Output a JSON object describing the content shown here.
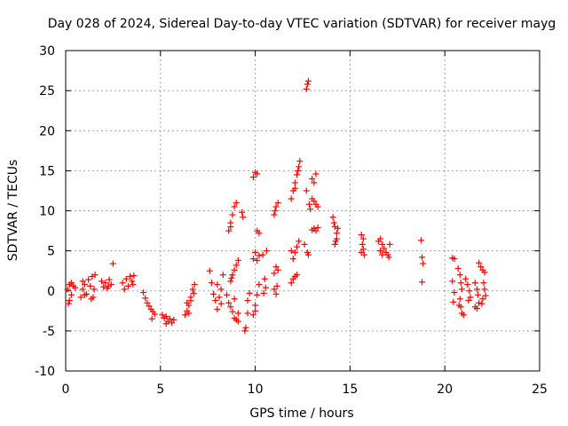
{
  "chart_data": {
    "type": "scatter",
    "title": "Day 028 of 2024, Sidereal Day-to-day VTEC variation (SDTVAR) for receiver mayg",
    "xlabel": "GPS time / hours",
    "ylabel": "SDTVAR / TECUs",
    "xlim": [
      0,
      25
    ],
    "ylim": [
      -10,
      30
    ],
    "xticks": [
      0,
      5,
      10,
      15,
      20,
      25
    ],
    "yticks": [
      -10,
      -5,
      0,
      5,
      10,
      15,
      20,
      25,
      30
    ],
    "grid": true,
    "marker": "+",
    "series": [
      {
        "name": "SDTVAR",
        "color": "#ff0000",
        "points": [
          [
            0.1,
            0.2
          ],
          [
            0.2,
            0.8
          ],
          [
            0.3,
            -0.5
          ],
          [
            0.4,
            0.6
          ],
          [
            0.3,
            1.0
          ],
          [
            0.2,
            -1.2
          ],
          [
            0.15,
            -1.6
          ],
          [
            0.5,
            0.4
          ],
          [
            0.8,
            -0.8
          ],
          [
            0.9,
            0.2
          ],
          [
            1.0,
            0.8
          ],
          [
            1.1,
            -0.4
          ],
          [
            1.2,
            1.4
          ],
          [
            1.3,
            0.6
          ],
          [
            1.35,
            -1.0
          ],
          [
            1.4,
            1.8
          ],
          [
            1.5,
            0.2
          ],
          [
            1.55,
            2.0
          ],
          [
            1.45,
            -0.8
          ],
          [
            1.0,
            -0.5
          ],
          [
            0.9,
            1.2
          ],
          [
            1.9,
            1.2
          ],
          [
            2.0,
            0.5
          ],
          [
            2.1,
            1.0
          ],
          [
            2.2,
            0.3
          ],
          [
            2.3,
            1.4
          ],
          [
            2.4,
            0.8
          ],
          [
            2.5,
            3.4
          ],
          [
            2.25,
            0.6
          ],
          [
            3.0,
            1.0
          ],
          [
            3.1,
            0.2
          ],
          [
            3.2,
            1.5
          ],
          [
            3.3,
            0.6
          ],
          [
            3.4,
            1.8
          ],
          [
            3.5,
            1.2
          ],
          [
            3.6,
            1.9
          ],
          [
            3.55,
            0.8
          ],
          [
            4.1,
            -0.2
          ],
          [
            4.2,
            -0.9
          ],
          [
            4.3,
            -1.5
          ],
          [
            4.4,
            -1.9
          ],
          [
            4.5,
            -2.3
          ],
          [
            4.6,
            -2.6
          ],
          [
            4.7,
            -2.9
          ],
          [
            4.55,
            -3.5
          ],
          [
            5.1,
            -3.0
          ],
          [
            5.2,
            -3.4
          ],
          [
            5.3,
            -3.2
          ],
          [
            5.4,
            -3.8
          ],
          [
            5.5,
            -3.5
          ],
          [
            5.6,
            -4.0
          ],
          [
            5.7,
            -3.6
          ],
          [
            5.3,
            -4.1
          ],
          [
            6.3,
            -3.0
          ],
          [
            6.4,
            -2.5
          ],
          [
            6.5,
            -1.8
          ],
          [
            6.6,
            -0.8
          ],
          [
            6.7,
            0.2
          ],
          [
            6.8,
            0.8
          ],
          [
            6.5,
            -2.8
          ],
          [
            6.6,
            -1.2
          ],
          [
            6.75,
            -0.3
          ],
          [
            6.4,
            -1.5
          ],
          [
            7.6,
            2.5
          ],
          [
            7.7,
            1.0
          ],
          [
            7.8,
            -0.4
          ],
          [
            7.9,
            -1.2
          ],
          [
            8.0,
            0.8
          ],
          [
            8.1,
            -0.8
          ],
          [
            8.2,
            -1.6
          ],
          [
            8.3,
            2.0
          ],
          [
            8.2,
            0.2
          ],
          [
            8.0,
            -2.3
          ],
          [
            8.5,
            -0.5
          ],
          [
            8.6,
            -1.5
          ],
          [
            8.7,
            -2.0
          ],
          [
            8.8,
            -2.6
          ],
          [
            8.9,
            -3.4
          ],
          [
            9.0,
            -3.6
          ],
          [
            9.1,
            -3.8
          ],
          [
            8.9,
            -1.0
          ],
          [
            9.1,
            -2.8
          ],
          [
            8.7,
            1.2
          ],
          [
            8.8,
            2.0
          ],
          [
            8.9,
            2.6
          ],
          [
            9.0,
            3.2
          ],
          [
            9.1,
            3.8
          ],
          [
            8.75,
            1.6
          ],
          [
            8.6,
            7.5
          ],
          [
            8.7,
            8.5
          ],
          [
            8.8,
            9.5
          ],
          [
            8.9,
            10.5
          ],
          [
            9.0,
            11.0
          ],
          [
            8.7,
            8.0
          ],
          [
            9.3,
            9.8
          ],
          [
            9.35,
            9.2
          ],
          [
            9.6,
            -1.2
          ],
          [
            9.7,
            -0.3
          ],
          [
            9.5,
            -4.6
          ],
          [
            9.45,
            -5.0
          ],
          [
            9.6,
            -2.8
          ],
          [
            9.9,
            -3.0
          ],
          [
            10.0,
            -1.8
          ],
          [
            10.1,
            -0.5
          ],
          [
            10.2,
            0.8
          ],
          [
            10.0,
            -2.5
          ],
          [
            9.9,
            14.2
          ],
          [
            10.0,
            14.8
          ],
          [
            10.1,
            14.6
          ],
          [
            10.1,
            7.5
          ],
          [
            10.2,
            7.2
          ],
          [
            9.9,
            4.0
          ],
          [
            10.0,
            4.8
          ],
          [
            10.1,
            3.8
          ],
          [
            10.2,
            4.4
          ],
          [
            10.55,
            0.4
          ],
          [
            10.5,
            1.5
          ],
          [
            10.45,
            -0.3
          ],
          [
            10.4,
            4.5
          ],
          [
            10.6,
            5.0
          ],
          [
            11.0,
            0.2
          ],
          [
            11.1,
            -0.4
          ],
          [
            11.15,
            0.6
          ],
          [
            11.0,
            2.2
          ],
          [
            11.1,
            3.0
          ],
          [
            11.2,
            2.6
          ],
          [
            11.0,
            9.5
          ],
          [
            11.1,
            10.5
          ],
          [
            11.2,
            11.0
          ],
          [
            11.05,
            10.0
          ],
          [
            11.9,
            1.0
          ],
          [
            12.0,
            1.5
          ],
          [
            12.1,
            1.8
          ],
          [
            12.2,
            2.0
          ],
          [
            12.0,
            4.0
          ],
          [
            12.1,
            4.8
          ],
          [
            12.2,
            5.5
          ],
          [
            12.3,
            6.2
          ],
          [
            11.9,
            5.0
          ],
          [
            11.9,
            11.5
          ],
          [
            12.0,
            12.5
          ],
          [
            12.1,
            13.5
          ],
          [
            12.2,
            14.5
          ],
          [
            12.3,
            15.5
          ],
          [
            12.35,
            16.2
          ],
          [
            12.1,
            12.8
          ],
          [
            12.25,
            15.0
          ],
          [
            12.7,
            25.2
          ],
          [
            12.75,
            25.8
          ],
          [
            12.8,
            26.2
          ],
          [
            12.8,
            4.5
          ],
          [
            12.75,
            4.8
          ],
          [
            12.6,
            5.8
          ],
          [
            12.7,
            12.5
          ],
          [
            12.85,
            10.8
          ],
          [
            12.9,
            10.2
          ],
          [
            13.0,
            14.0
          ],
          [
            13.1,
            13.5
          ],
          [
            13.2,
            14.6
          ],
          [
            13.0,
            11.5
          ],
          [
            13.1,
            11.2
          ],
          [
            13.2,
            10.8
          ],
          [
            13.3,
            10.5
          ],
          [
            13.0,
            7.6
          ],
          [
            13.1,
            7.8
          ],
          [
            13.2,
            7.5
          ],
          [
            13.3,
            7.9
          ],
          [
            14.1,
            9.2
          ],
          [
            14.15,
            8.5
          ],
          [
            14.2,
            8.0
          ],
          [
            14.3,
            7.2
          ],
          [
            14.25,
            6.2
          ],
          [
            14.2,
            5.8
          ],
          [
            14.3,
            6.5
          ],
          [
            14.35,
            7.8
          ],
          [
            15.6,
            7.0
          ],
          [
            15.7,
            6.5
          ],
          [
            15.65,
            5.8
          ],
          [
            15.7,
            5.2
          ],
          [
            15.6,
            4.8
          ],
          [
            15.75,
            4.5
          ],
          [
            16.5,
            6.2
          ],
          [
            16.6,
            6.5
          ],
          [
            16.7,
            5.8
          ],
          [
            16.6,
            5.0
          ],
          [
            16.7,
            4.5
          ],
          [
            16.8,
            5.3
          ],
          [
            16.9,
            4.8
          ],
          [
            17.0,
            4.5
          ],
          [
            17.1,
            5.8
          ],
          [
            17.05,
            4.2
          ],
          [
            18.75,
            6.3
          ],
          [
            18.8,
            4.2
          ],
          [
            18.85,
            3.4
          ],
          [
            18.8,
            1.1
          ],
          [
            20.4,
            4.1
          ],
          [
            20.5,
            4.0
          ],
          [
            20.4,
            1.2
          ],
          [
            20.5,
            -0.2
          ],
          [
            20.45,
            -1.4
          ],
          [
            20.7,
            2.8
          ],
          [
            20.8,
            2.0
          ],
          [
            20.85,
            1.0
          ],
          [
            20.9,
            0.2
          ],
          [
            20.8,
            -1.0
          ],
          [
            20.85,
            -2.0
          ],
          [
            20.9,
            -2.8
          ],
          [
            21.0,
            -3.0
          ],
          [
            20.75,
            -1.8
          ],
          [
            21.1,
            1.5
          ],
          [
            21.2,
            0.8
          ],
          [
            21.3,
            0.0
          ],
          [
            21.35,
            -0.8
          ],
          [
            21.25,
            -1.2
          ],
          [
            21.6,
            1.0
          ],
          [
            21.7,
            0.2
          ],
          [
            21.75,
            -0.5
          ],
          [
            21.8,
            -1.5
          ],
          [
            21.7,
            -2.2
          ],
          [
            21.6,
            -2.0
          ],
          [
            21.8,
            3.5
          ],
          [
            21.9,
            3.0
          ],
          [
            22.0,
            2.6
          ],
          [
            22.1,
            2.3
          ],
          [
            22.05,
            1.0
          ],
          [
            22.1,
            0.2
          ],
          [
            22.15,
            -0.6
          ],
          [
            22.0,
            -1.0
          ],
          [
            21.95,
            -1.6
          ]
        ]
      }
    ]
  }
}
